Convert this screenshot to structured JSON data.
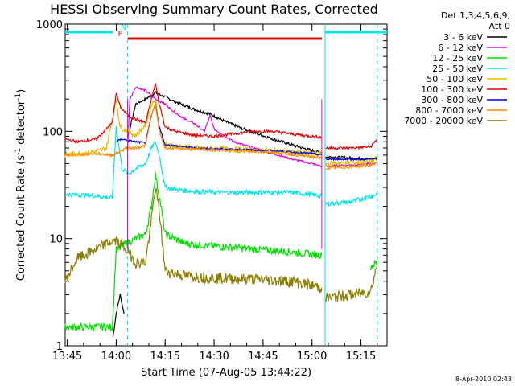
{
  "chart_data": {
    "type": "line",
    "title": "HESSI Observing Summary Count Rates, Corrected",
    "xlabel": "Start Time (07-Aug-05 13:44:22)",
    "ylabel": "Corrected Count Rate (s",
    "ylabel_sup1": "-1",
    "ylabel_mid": " detector",
    "ylabel_sup2": "-1",
    "ylabel_end": ")",
    "ylog": true,
    "ylim": [
      1,
      1000
    ],
    "xlim": [
      13.7394,
      15.3833
    ],
    "x_unit": "hour of day (UT)",
    "x_ticks": [
      {
        "v": 13.75,
        "label": "13:45"
      },
      {
        "v": 14.0,
        "label": "14:00"
      },
      {
        "v": 14.25,
        "label": "14:15"
      },
      {
        "v": 14.5,
        "label": "14:30"
      },
      {
        "v": 14.75,
        "label": "14:45"
      },
      {
        "v": 15.0,
        "label": "15:00"
      },
      {
        "v": 15.25,
        "label": "15:15"
      }
    ],
    "y_ticks": [
      {
        "v": 1,
        "label": "1"
      },
      {
        "v": 10,
        "label": "10"
      },
      {
        "v": 100,
        "label": "100"
      },
      {
        "v": 1000,
        "label": "1000"
      }
    ],
    "legend_header": [
      "Det 1,3,4,5,6,9,",
      "Att 0"
    ],
    "status_flags": [
      {
        "name": "N",
        "color": "#00e5e5",
        "segments": [
          [
            13.7394,
            13.9833
          ],
          [
            15.0667,
            15.3833
          ]
        ]
      },
      {
        "name": "F",
        "color": "#e00000",
        "segments": [
          [
            14.0583,
            15.05
          ]
        ]
      }
    ],
    "markers": [
      {
        "x": 14.0583,
        "color": "#00e5e5",
        "style": "dashed"
      },
      {
        "x": 15.0667,
        "color": "#00e5e5",
        "style": "solid"
      },
      {
        "x": 15.3333,
        "color": "#00e5e5",
        "style": "dashed"
      },
      {
        "x": 14.0583,
        "color": "#e000e0",
        "style": "solid"
      },
      {
        "x": 15.05,
        "color": "#e000e0",
        "style": "solid"
      }
    ],
    "series": [
      {
        "name": "3 - 6 keV",
        "color": "#000000",
        "noise": 0.03,
        "points": [
          [
            13.9833,
            1.2
          ],
          [
            14.0,
            2.0
          ],
          [
            14.02,
            3.0
          ],
          [
            14.04,
            2.0
          ],
          [
            14.0583,
            0
          ],
          [
            14.06,
            90
          ],
          [
            14.1,
            180
          ],
          [
            14.15,
            200
          ],
          [
            14.2,
            230
          ],
          [
            14.3,
            190
          ],
          [
            14.4,
            160
          ],
          [
            14.48,
            145
          ],
          [
            14.55,
            125
          ],
          [
            14.65,
            105
          ],
          [
            14.8,
            85
          ],
          [
            14.95,
            70
          ],
          [
            15.05,
            63
          ],
          [
            15.0667,
            0
          ],
          [
            15.07,
            58
          ],
          [
            15.3,
            55
          ],
          [
            15.3333,
            56
          ]
        ]
      },
      {
        "name": "6 - 12 keV",
        "color": "#e000e0",
        "noise": 0.02,
        "points": [
          [
            14.0583,
            70
          ],
          [
            14.07,
            200
          ],
          [
            14.1,
            260
          ],
          [
            14.15,
            240
          ],
          [
            14.2,
            200
          ],
          [
            14.25,
            180
          ],
          [
            14.3,
            150
          ],
          [
            14.35,
            130
          ],
          [
            14.4,
            118
          ],
          [
            14.45,
            100
          ],
          [
            14.48,
            140
          ],
          [
            14.5,
            105
          ],
          [
            14.55,
            92
          ],
          [
            14.6,
            80
          ],
          [
            14.7,
            70
          ],
          [
            14.8,
            62
          ],
          [
            14.9,
            55
          ],
          [
            15.0,
            50
          ],
          [
            15.05,
            47
          ],
          [
            15.0667,
            0
          ],
          [
            15.07,
            47
          ],
          [
            15.3,
            50
          ],
          [
            15.3333,
            51
          ]
        ]
      },
      {
        "name": "12 - 25 keV",
        "color": "#00e000",
        "noise": 0.08,
        "points": [
          [
            13.7394,
            1.5
          ],
          [
            13.98,
            1.5
          ],
          [
            14.0,
            8
          ],
          [
            14.05,
            9
          ],
          [
            14.1,
            10
          ],
          [
            14.15,
            11
          ],
          [
            14.18,
            20
          ],
          [
            14.2,
            40
          ],
          [
            14.22,
            25
          ],
          [
            14.25,
            11
          ],
          [
            14.35,
            9
          ],
          [
            14.5,
            8.5
          ],
          [
            14.7,
            8
          ],
          [
            14.9,
            7.5
          ],
          [
            15.05,
            7
          ],
          [
            15.0667,
            0
          ],
          [
            15.3,
            5.5
          ],
          [
            15.3333,
            6
          ]
        ]
      },
      {
        "name": "25 - 50 keV",
        "color": "#00e5e5",
        "noise": 0.05,
        "points": [
          [
            13.7394,
            26
          ],
          [
            13.9,
            25
          ],
          [
            13.98,
            24
          ],
          [
            14.0,
            110
          ],
          [
            14.03,
            45
          ],
          [
            14.06,
            40
          ],
          [
            14.1,
            45
          ],
          [
            14.15,
            50
          ],
          [
            14.18,
            70
          ],
          [
            14.2,
            80
          ],
          [
            14.22,
            60
          ],
          [
            14.25,
            30
          ],
          [
            14.35,
            28
          ],
          [
            14.5,
            27
          ],
          [
            14.7,
            27
          ],
          [
            14.9,
            27
          ],
          [
            15.05,
            25
          ],
          [
            15.0667,
            0
          ],
          [
            15.07,
            21
          ],
          [
            15.2,
            22
          ],
          [
            15.3333,
            26
          ]
        ]
      },
      {
        "name": "50 - 100 keV",
        "color": "#e5c000",
        "noise": 0.06,
        "points": [
          [
            13.7394,
            60
          ],
          [
            13.9,
            65
          ],
          [
            13.95,
            70
          ],
          [
            13.98,
            130
          ],
          [
            14.0,
            200
          ],
          [
            14.02,
            110
          ],
          [
            14.06,
            100
          ],
          [
            14.1,
            92
          ],
          [
            14.15,
            115
          ],
          [
            14.18,
            180
          ],
          [
            14.2,
            200
          ],
          [
            14.22,
            110
          ],
          [
            14.25,
            75
          ],
          [
            14.4,
            70
          ],
          [
            14.6,
            68
          ],
          [
            14.8,
            66
          ],
          [
            15.0,
            62
          ],
          [
            15.05,
            60
          ],
          [
            15.0667,
            0
          ],
          [
            15.07,
            50
          ],
          [
            15.3,
            52
          ],
          [
            15.3333,
            56
          ]
        ]
      },
      {
        "name": "100 - 300 keV",
        "color": "#e00000",
        "noise": 0.03,
        "points": [
          [
            13.7394,
            85
          ],
          [
            13.8,
            80
          ],
          [
            13.9,
            85
          ],
          [
            13.98,
            120
          ],
          [
            14.0,
            230
          ],
          [
            14.02,
            170
          ],
          [
            14.06,
            140
          ],
          [
            14.1,
            130
          ],
          [
            14.15,
            120
          ],
          [
            14.18,
            200
          ],
          [
            14.2,
            280
          ],
          [
            14.22,
            180
          ],
          [
            14.25,
            110
          ],
          [
            14.3,
            100
          ],
          [
            14.4,
            92
          ],
          [
            14.5,
            90
          ],
          [
            14.6,
            95
          ],
          [
            14.7,
            100
          ],
          [
            14.8,
            100
          ],
          [
            14.95,
            92
          ],
          [
            15.05,
            88
          ],
          [
            15.0667,
            0
          ],
          [
            15.07,
            70
          ],
          [
            15.2,
            70
          ],
          [
            15.3,
            72
          ],
          [
            15.3333,
            85
          ]
        ]
      },
      {
        "name": "300 - 800 keV",
        "color": "#0000e0",
        "noise": 0.02,
        "points": [
          [
            14.0,
            80
          ],
          [
            14.03,
            85
          ],
          [
            14.06,
            82
          ],
          [
            14.1,
            80
          ],
          [
            14.15,
            78
          ],
          [
            14.18,
            140
          ],
          [
            14.2,
            180
          ],
          [
            14.22,
            110
          ],
          [
            14.25,
            75
          ],
          [
            14.4,
            70
          ],
          [
            14.6,
            68
          ],
          [
            14.8,
            66
          ],
          [
            15.0,
            62
          ],
          [
            15.05,
            60
          ],
          [
            15.0667,
            0
          ],
          [
            15.07,
            55
          ],
          [
            15.3,
            55
          ],
          [
            15.3333,
            57
          ]
        ]
      },
      {
        "name": "800 - 7000 keV",
        "color": "#ff8c00",
        "noise": 0.03,
        "points": [
          [
            13.7394,
            60
          ],
          [
            13.9,
            62
          ],
          [
            13.98,
            60
          ],
          [
            14.0,
            62
          ],
          [
            14.05,
            70
          ],
          [
            14.1,
            70
          ],
          [
            14.15,
            74
          ],
          [
            14.18,
            140
          ],
          [
            14.2,
            180
          ],
          [
            14.22,
            100
          ],
          [
            14.25,
            70
          ],
          [
            14.4,
            68
          ],
          [
            14.6,
            66
          ],
          [
            14.8,
            64
          ],
          [
            15.0,
            58
          ],
          [
            15.05,
            56
          ],
          [
            15.0667,
            0
          ],
          [
            15.07,
            45
          ],
          [
            15.3,
            48
          ],
          [
            15.3333,
            52
          ]
        ]
      },
      {
        "name": "7000 - 20000 keV",
        "color": "#8b7d00",
        "noise": 0.12,
        "points": [
          [
            13.7394,
            4.0
          ],
          [
            13.8,
            6.5
          ],
          [
            13.9,
            8.0
          ],
          [
            13.98,
            9.5
          ],
          [
            14.0,
            9.5
          ],
          [
            14.05,
            8.0
          ],
          [
            14.1,
            6.0
          ],
          [
            14.15,
            6.0
          ],
          [
            14.18,
            15
          ],
          [
            14.2,
            30
          ],
          [
            14.22,
            18
          ],
          [
            14.25,
            5.0
          ],
          [
            14.35,
            4.5
          ],
          [
            14.5,
            4.3
          ],
          [
            14.7,
            4.2
          ],
          [
            14.9,
            4.0
          ],
          [
            15.05,
            3.5
          ],
          [
            15.0667,
            0
          ],
          [
            15.07,
            2.8
          ],
          [
            15.2,
            3.0
          ],
          [
            15.3,
            3.2
          ],
          [
            15.3333,
            6.0
          ]
        ]
      }
    ]
  },
  "timestamp": "8-Apr-2010 02:43"
}
